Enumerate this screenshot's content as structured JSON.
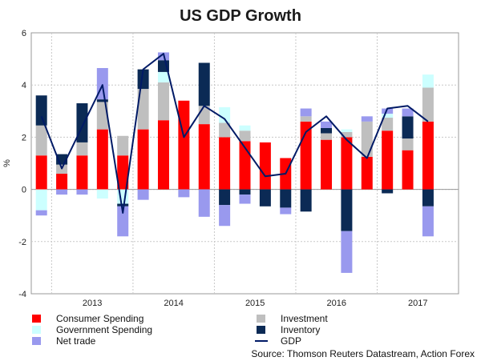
{
  "chart_data": {
    "type": "bar",
    "stacked": true,
    "title": "US GDP Growth",
    "ylabel": "%",
    "xlabel": "",
    "ylim": [
      -4,
      6
    ],
    "yticks": [
      -4,
      -2,
      0,
      2,
      4,
      6
    ],
    "categories": [
      "2012Q4",
      "2013Q1",
      "2013Q2",
      "2013Q3",
      "2013Q4",
      "2014Q1",
      "2014Q2",
      "2014Q3",
      "2014Q4",
      "2015Q1",
      "2015Q2",
      "2015Q3",
      "2015Q4",
      "2016Q1",
      "2016Q2",
      "2016Q3",
      "2016Q4",
      "2017Q1",
      "2017Q2",
      "2017Q3",
      "2017Q4"
    ],
    "year_labels": [
      {
        "label": "2013",
        "center_index": 2.5
      },
      {
        "label": "2014",
        "center_index": 6.5
      },
      {
        "label": "2015",
        "center_index": 10.5
      },
      {
        "label": "2016",
        "center_index": 14.5
      },
      {
        "label": "2017",
        "center_index": 18.5
      }
    ],
    "series": [
      {
        "name": "Consumer Spending",
        "color": "#ff0000",
        "values": [
          1.3,
          0.6,
          1.3,
          2.3,
          1.3,
          2.3,
          2.65,
          3.4,
          2.5,
          2.0,
          1.85,
          1.8,
          1.2,
          2.6,
          1.9,
          2.0,
          1.25,
          2.25,
          1.5,
          2.6,
          null
        ]
      },
      {
        "name": "Investment",
        "color": "#bfbfbf",
        "values": [
          1.15,
          0.35,
          0.5,
          1.05,
          0.75,
          1.55,
          1.45,
          null,
          0.7,
          0.55,
          0.4,
          null,
          null,
          0.2,
          0.25,
          0.2,
          1.35,
          0.5,
          0.45,
          1.3,
          null
        ]
      },
      {
        "name": "Government Spending",
        "color": "#ccffff",
        "values": [
          -0.8,
          null,
          null,
          -0.35,
          -0.55,
          null,
          0.4,
          null,
          null,
          0.6,
          0.2,
          null,
          null,
          null,
          null,
          0.1,
          null,
          0.15,
          null,
          0.5,
          null
        ]
      },
      {
        "name": "Inventory",
        "color": "#0b2a55",
        "values": [
          1.15,
          0.4,
          1.5,
          0.1,
          -0.1,
          0.75,
          0.45,
          null,
          1.65,
          -0.6,
          -0.2,
          -0.65,
          -0.7,
          -0.85,
          0.2,
          -1.6,
          null,
          -0.15,
          0.85,
          -0.65,
          null
        ]
      },
      {
        "name": "Net trade",
        "color": "#9999ee",
        "values": [
          -0.2,
          -0.2,
          -0.2,
          1.2,
          -1.15,
          -0.4,
          0.3,
          -0.3,
          -1.05,
          -0.8,
          -0.35,
          null,
          -0.25,
          0.3,
          0.25,
          -1.6,
          0.2,
          0.2,
          0.3,
          -1.15,
          null
        ]
      }
    ],
    "line": {
      "name": "GDP",
      "color": "#001a66",
      "values": [
        2.8,
        0.8,
        2.4,
        4.0,
        -0.9,
        4.6,
        5.2,
        2.0,
        3.2,
        2.7,
        1.6,
        0.5,
        0.6,
        2.2,
        2.8,
        1.9,
        1.2,
        3.1,
        3.2,
        2.6,
        null
      ]
    },
    "legend": {
      "placement": "bottom",
      "items": [
        {
          "label": "Consumer Spending",
          "kind": "box",
          "color": "#ff0000"
        },
        {
          "label": "Investment",
          "kind": "box",
          "color": "#bfbfbf"
        },
        {
          "label": "Government Spending",
          "kind": "box",
          "color": "#ccffff"
        },
        {
          "label": "Inventory",
          "kind": "box",
          "color": "#0b2a55"
        },
        {
          "label": "Net trade",
          "kind": "box",
          "color": "#9999ee"
        },
        {
          "label": "GDP",
          "kind": "line",
          "color": "#001a66"
        }
      ]
    },
    "source": "Source: Thomson Reuters Datastream, Action Forex",
    "grid": true
  }
}
